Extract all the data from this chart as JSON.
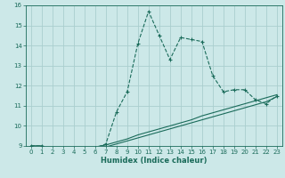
{
  "xlabel": "Humidex (Indice chaleur)",
  "bg_color": "#cce8e8",
  "grid_color": "#aacece",
  "line_color": "#1a6b5a",
  "xlim": [
    -0.5,
    23.5
  ],
  "ylim": [
    9,
    16
  ],
  "xticks": [
    0,
    1,
    2,
    3,
    4,
    5,
    6,
    7,
    8,
    9,
    10,
    11,
    12,
    13,
    14,
    15,
    16,
    17,
    18,
    19,
    20,
    21,
    22,
    23
  ],
  "yticks": [
    9,
    10,
    11,
    12,
    13,
    14,
    15,
    16
  ],
  "line1_x": [
    0,
    1,
    2,
    3,
    4,
    5,
    6,
    7,
    8,
    9,
    10,
    11,
    12,
    13,
    14,
    15,
    16,
    17,
    18,
    19,
    20,
    21,
    22,
    23
  ],
  "line1_y": [
    9.0,
    9.0,
    8.85,
    8.8,
    8.8,
    8.85,
    8.9,
    9.1,
    10.7,
    11.7,
    14.1,
    15.7,
    14.5,
    13.3,
    14.4,
    14.3,
    14.2,
    12.5,
    11.7,
    11.8,
    11.8,
    11.3,
    11.1,
    11.5
  ],
  "line2_x": [
    0,
    1,
    2,
    3,
    4,
    5,
    6,
    7,
    8,
    9,
    10,
    11,
    12,
    13,
    14,
    15,
    16,
    17,
    18,
    19,
    20,
    21,
    22,
    23
  ],
  "line2_y": [
    9.0,
    9.0,
    8.9,
    8.85,
    8.85,
    8.9,
    8.95,
    9.05,
    9.2,
    9.35,
    9.55,
    9.7,
    9.85,
    10.0,
    10.15,
    10.3,
    10.5,
    10.65,
    10.8,
    10.95,
    11.1,
    11.25,
    11.4,
    11.55
  ],
  "line3_x": [
    0,
    1,
    2,
    3,
    4,
    5,
    6,
    7,
    8,
    9,
    10,
    11,
    12,
    13,
    14,
    15,
    16,
    17,
    18,
    19,
    20,
    21,
    22,
    23
  ],
  "line3_y": [
    9.0,
    9.0,
    8.85,
    8.8,
    8.75,
    8.8,
    8.85,
    8.95,
    9.1,
    9.25,
    9.4,
    9.55,
    9.7,
    9.85,
    10.0,
    10.15,
    10.3,
    10.45,
    10.6,
    10.75,
    10.9,
    11.05,
    11.2,
    11.45
  ]
}
